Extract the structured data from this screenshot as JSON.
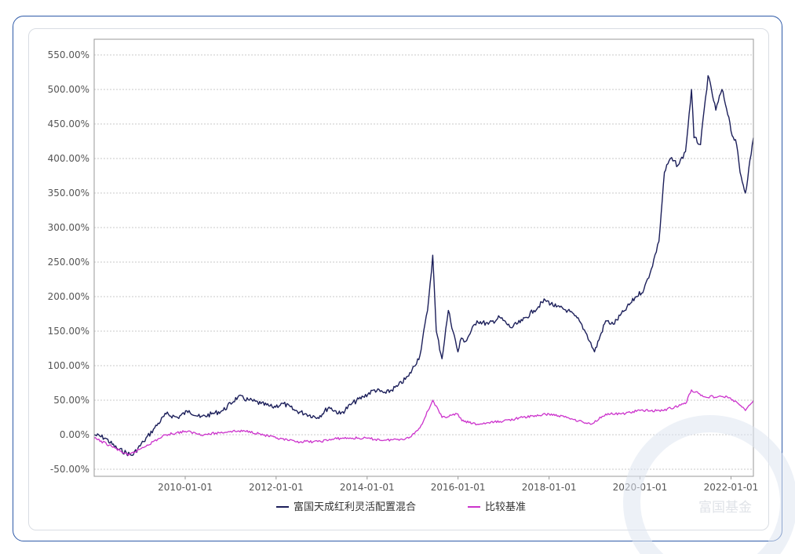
{
  "colors": {
    "fund": "#1c1f5a",
    "benchmark": "#cc33cc",
    "grid": "#c8c8c8",
    "frame": "#2e5aa8"
  },
  "watermark": {
    "text": "富国基金"
  },
  "chart_data": {
    "type": "line",
    "title": "",
    "xlabel": "",
    "ylabel": "",
    "xlim": [
      "2008-01-01",
      "2022-06-30"
    ],
    "ylim": [
      -50,
      550
    ],
    "yticks": [
      "550.00%",
      "500.00%",
      "450.00%",
      "400.00%",
      "350.00%",
      "300.00%",
      "250.00%",
      "200.00%",
      "150.00%",
      "100.00%",
      "50.00%",
      "0.00%",
      "-50.00%"
    ],
    "ytick_values": [
      550,
      500,
      450,
      400,
      350,
      300,
      250,
      200,
      150,
      100,
      50,
      0,
      -50
    ],
    "xticks": [
      "2010-01-01",
      "2012-01-01",
      "2014-01-01",
      "2016-01-01",
      "2018-01-01",
      "2020-01-01",
      "2022-01-01"
    ],
    "grid": true,
    "legend_position": "bottom",
    "series": [
      {
        "name": "富国天成红利灵活配置混合",
        "color": "#1c1f5a",
        "x": [
          "2008-01-01",
          "2008-04-01",
          "2008-07-01",
          "2008-11-01",
          "2009-02-01",
          "2009-05-01",
          "2009-08-01",
          "2009-11-01",
          "2010-02-01",
          "2010-05-01",
          "2010-08-01",
          "2010-11-01",
          "2011-03-01",
          "2011-06-01",
          "2011-09-01",
          "2011-12-01",
          "2012-03-01",
          "2012-06-01",
          "2012-09-01",
          "2012-12-01",
          "2013-03-01",
          "2013-06-01",
          "2013-09-01",
          "2013-12-01",
          "2014-03-01",
          "2014-06-01",
          "2014-09-01",
          "2014-12-01",
          "2015-03-01",
          "2015-05-01",
          "2015-06-12",
          "2015-07-10",
          "2015-08-25",
          "2015-10-15",
          "2015-12-31",
          "2016-01-28",
          "2016-03-01",
          "2016-06-01",
          "2016-09-01",
          "2016-12-01",
          "2017-03-01",
          "2017-06-01",
          "2017-09-01",
          "2017-12-01",
          "2018-03-01",
          "2018-06-01",
          "2018-09-01",
          "2018-11-01",
          "2019-01-01",
          "2019-04-01",
          "2019-06-01",
          "2019-09-01",
          "2019-12-01",
          "2020-02-01",
          "2020-04-01",
          "2020-06-01",
          "2020-07-15",
          "2020-09-01",
          "2020-11-01",
          "2021-01-01",
          "2021-02-18",
          "2021-03-10",
          "2021-05-01",
          "2021-07-01",
          "2021-09-01",
          "2021-10-20",
          "2021-12-15",
          "2022-01-01",
          "2022-02-15",
          "2022-03-15",
          "2022-04-27",
          "2022-06-30"
        ],
        "values": [
          0,
          -5,
          -20,
          -30,
          -10,
          10,
          30,
          25,
          35,
          25,
          30,
          35,
          55,
          50,
          45,
          40,
          45,
          35,
          30,
          25,
          40,
          30,
          45,
          55,
          65,
          60,
          70,
          85,
          115,
          180,
          260,
          150,
          110,
          180,
          120,
          140,
          135,
          165,
          160,
          170,
          155,
          165,
          180,
          195,
          185,
          180,
          165,
          145,
          120,
          165,
          160,
          180,
          200,
          210,
          240,
          280,
          380,
          400,
          390,
          410,
          500,
          430,
          420,
          520,
          470,
          500,
          460,
          440,
          420,
          380,
          350,
          430
        ]
      },
      {
        "name": "比较基准",
        "color": "#cc33cc",
        "x": [
          "2008-01-01",
          "2008-05-01",
          "2008-10-01",
          "2009-03-01",
          "2009-08-01",
          "2010-01-01",
          "2010-06-01",
          "2011-01-01",
          "2011-06-01",
          "2012-01-01",
          "2012-06-01",
          "2012-12-01",
          "2013-06-01",
          "2013-12-01",
          "2014-06-01",
          "2014-12-01",
          "2015-03-01",
          "2015-06-12",
          "2015-08-25",
          "2015-12-31",
          "2016-02-01",
          "2016-06-01",
          "2017-01-01",
          "2017-06-01",
          "2018-01-01",
          "2018-06-01",
          "2018-12-01",
          "2019-04-01",
          "2019-08-01",
          "2020-01-01",
          "2020-07-01",
          "2021-01-01",
          "2021-02-18",
          "2021-06-01",
          "2021-12-01",
          "2022-03-01",
          "2022-04-27",
          "2022-06-30"
        ],
        "values": [
          -5,
          -15,
          -30,
          -15,
          0,
          5,
          0,
          5,
          5,
          -5,
          -10,
          -10,
          -5,
          -5,
          -8,
          -5,
          10,
          50,
          25,
          30,
          20,
          15,
          20,
          25,
          30,
          25,
          15,
          30,
          30,
          35,
          35,
          45,
          65,
          55,
          55,
          45,
          35,
          50
        ]
      }
    ]
  }
}
